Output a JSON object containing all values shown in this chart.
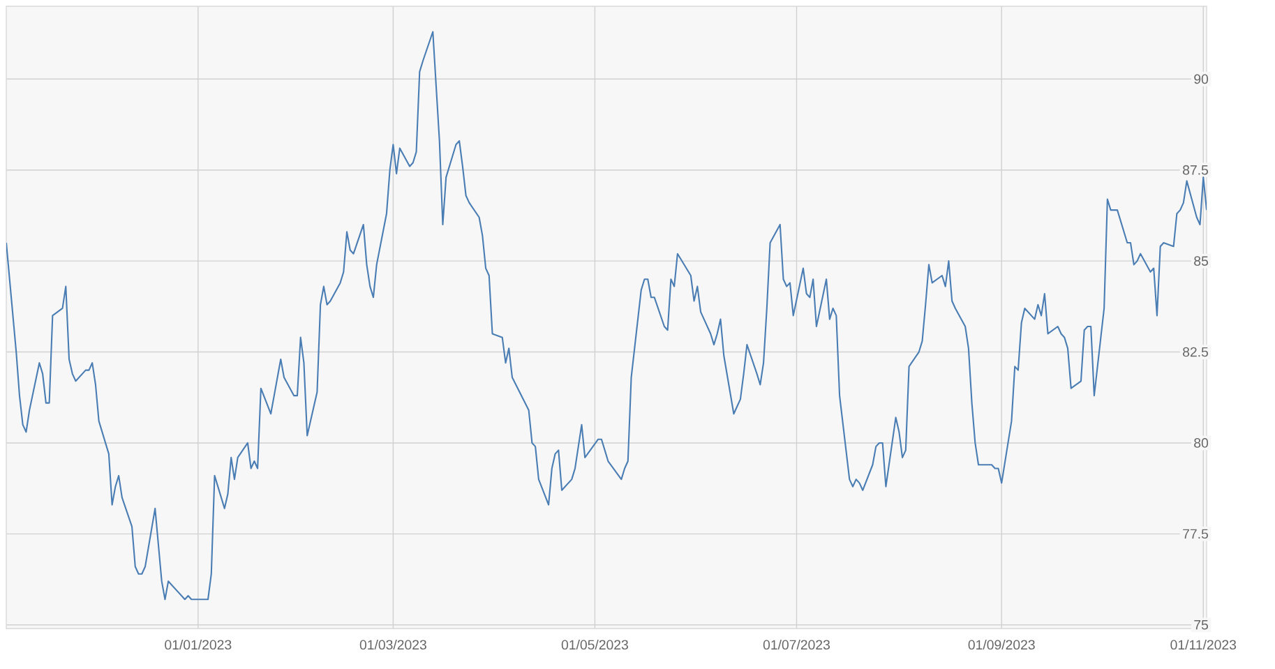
{
  "chart_data": {
    "type": "line",
    "color": "#4a7db3",
    "grid": true,
    "xlim": [
      "2022-11-04",
      "2023-11-02"
    ],
    "ylim": [
      74.9,
      92
    ],
    "yticks": [
      75,
      77.5,
      80,
      82.5,
      85,
      87.5,
      90
    ],
    "xticks": [
      {
        "value": "2023-01-01",
        "label": "01/01/2023"
      },
      {
        "value": "2023-03-01",
        "label": "01/03/2023"
      },
      {
        "value": "2023-05-01",
        "label": "01/05/2023"
      },
      {
        "value": "2023-07-01",
        "label": "01/07/2023"
      },
      {
        "value": "2023-09-01",
        "label": "01/09/2023"
      },
      {
        "value": "2023-11-01",
        "label": "01/11/2023"
      }
    ],
    "x": [
      "2022-11-04",
      "2022-11-07",
      "2022-11-08",
      "2022-11-09",
      "2022-11-10",
      "2022-11-11",
      "2022-11-14",
      "2022-11-15",
      "2022-11-16",
      "2022-11-17",
      "2022-11-18",
      "2022-11-21",
      "2022-11-22",
      "2022-11-23",
      "2022-11-24",
      "2022-11-25",
      "2022-11-28",
      "2022-11-29",
      "2022-11-30",
      "2022-12-01",
      "2022-12-02",
      "2022-12-05",
      "2022-12-06",
      "2022-12-07",
      "2022-12-08",
      "2022-12-09",
      "2022-12-12",
      "2022-12-13",
      "2022-12-14",
      "2022-12-15",
      "2022-12-16",
      "2022-12-19",
      "2022-12-20",
      "2022-12-21",
      "2022-12-22",
      "2022-12-23",
      "2022-12-28",
      "2022-12-29",
      "2022-12-30",
      "2023-01-03",
      "2023-01-04",
      "2023-01-05",
      "2023-01-06",
      "2023-01-09",
      "2023-01-10",
      "2023-01-11",
      "2023-01-12",
      "2023-01-13",
      "2023-01-16",
      "2023-01-17",
      "2023-01-18",
      "2023-01-19",
      "2023-01-20",
      "2023-01-23",
      "2023-01-24",
      "2023-01-25",
      "2023-01-26",
      "2023-01-27",
      "2023-01-30",
      "2023-01-31",
      "2023-02-01",
      "2023-02-02",
      "2023-02-03",
      "2023-02-06",
      "2023-02-07",
      "2023-02-08",
      "2023-02-09",
      "2023-02-10",
      "2023-02-13",
      "2023-02-14",
      "2023-02-15",
      "2023-02-16",
      "2023-02-17",
      "2023-02-20",
      "2023-02-21",
      "2023-02-22",
      "2023-02-23",
      "2023-02-24",
      "2023-02-27",
      "2023-02-28",
      "2023-03-01",
      "2023-03-02",
      "2023-03-03",
      "2023-03-06",
      "2023-03-07",
      "2023-03-08",
      "2023-03-09",
      "2023-03-10",
      "2023-03-13",
      "2023-03-14",
      "2023-03-15",
      "2023-03-16",
      "2023-03-17",
      "2023-03-20",
      "2023-03-21",
      "2023-03-22",
      "2023-03-23",
      "2023-03-24",
      "2023-03-27",
      "2023-03-28",
      "2023-03-29",
      "2023-03-30",
      "2023-03-31",
      "2023-04-03",
      "2023-04-04",
      "2023-04-05",
      "2023-04-06",
      "2023-04-11",
      "2023-04-12",
      "2023-04-13",
      "2023-04-14",
      "2023-04-17",
      "2023-04-18",
      "2023-04-19",
      "2023-04-20",
      "2023-04-21",
      "2023-04-24",
      "2023-04-25",
      "2023-04-26",
      "2023-04-27",
      "2023-04-28",
      "2023-05-02",
      "2023-05-03",
      "2023-05-04",
      "2023-05-05",
      "2023-05-09",
      "2023-05-10",
      "2023-05-11",
      "2023-05-12",
      "2023-05-15",
      "2023-05-16",
      "2023-05-17",
      "2023-05-18",
      "2023-05-19",
      "2023-05-22",
      "2023-05-23",
      "2023-05-24",
      "2023-05-25",
      "2023-05-26",
      "2023-05-30",
      "2023-05-31",
      "2023-06-01",
      "2023-06-02",
      "2023-06-05",
      "2023-06-06",
      "2023-06-07",
      "2023-06-08",
      "2023-06-09",
      "2023-06-12",
      "2023-06-13",
      "2023-06-14",
      "2023-06-15",
      "2023-06-16",
      "2023-06-19",
      "2023-06-20",
      "2023-06-21",
      "2023-06-22",
      "2023-06-23",
      "2023-06-26",
      "2023-06-27",
      "2023-06-28",
      "2023-06-29",
      "2023-06-30",
      "2023-07-03",
      "2023-07-04",
      "2023-07-05",
      "2023-07-06",
      "2023-07-07",
      "2023-07-10",
      "2023-07-11",
      "2023-07-12",
      "2023-07-13",
      "2023-07-14",
      "2023-07-17",
      "2023-07-18",
      "2023-07-19",
      "2023-07-20",
      "2023-07-21",
      "2023-07-24",
      "2023-07-25",
      "2023-07-26",
      "2023-07-27",
      "2023-07-28",
      "2023-07-31",
      "2023-08-01",
      "2023-08-02",
      "2023-08-03",
      "2023-08-04",
      "2023-08-07",
      "2023-08-08",
      "2023-08-09",
      "2023-08-10",
      "2023-08-11",
      "2023-08-14",
      "2023-08-15",
      "2023-08-16",
      "2023-08-17",
      "2023-08-18",
      "2023-08-21",
      "2023-08-22",
      "2023-08-23",
      "2023-08-24",
      "2023-08-25",
      "2023-08-29",
      "2023-08-30",
      "2023-08-31",
      "2023-09-01",
      "2023-09-04",
      "2023-09-05",
      "2023-09-06",
      "2023-09-07",
      "2023-09-08",
      "2023-09-11",
      "2023-09-12",
      "2023-09-13",
      "2023-09-14",
      "2023-09-15",
      "2023-09-18",
      "2023-09-19",
      "2023-09-20",
      "2023-09-21",
      "2023-09-22",
      "2023-09-25",
      "2023-09-26",
      "2023-09-27",
      "2023-09-28",
      "2023-09-29",
      "2023-10-02",
      "2023-10-03",
      "2023-10-04",
      "2023-10-05",
      "2023-10-06",
      "2023-10-09",
      "2023-10-10",
      "2023-10-11",
      "2023-10-12",
      "2023-10-13",
      "2023-10-16",
      "2023-10-17",
      "2023-10-18",
      "2023-10-19",
      "2023-10-20",
      "2023-10-23",
      "2023-10-24",
      "2023-10-25",
      "2023-10-26",
      "2023-10-27",
      "2023-10-30",
      "2023-10-31",
      "2023-11-01",
      "2023-11-02"
    ],
    "values": [
      85.5,
      82.5,
      81.3,
      80.5,
      80.3,
      80.9,
      82.2,
      81.9,
      81.1,
      81.1,
      83.5,
      83.7,
      84.3,
      82.3,
      81.9,
      81.7,
      82.0,
      82.0,
      82.2,
      81.6,
      80.6,
      79.7,
      78.3,
      78.8,
      79.1,
      78.5,
      77.7,
      76.6,
      76.4,
      76.4,
      76.6,
      78.2,
      77.2,
      76.2,
      75.7,
      76.2,
      75.7,
      75.8,
      75.7,
      75.7,
      75.7,
      76.4,
      79.1,
      78.2,
      78.6,
      79.6,
      79.0,
      79.6,
      80.0,
      79.3,
      79.5,
      79.3,
      81.5,
      80.8,
      81.3,
      81.8,
      82.3,
      81.8,
      81.3,
      81.3,
      82.9,
      82.2,
      80.2,
      81.4,
      83.8,
      84.3,
      83.8,
      83.9,
      84.4,
      84.7,
      85.8,
      85.3,
      85.2,
      86.0,
      84.9,
      84.3,
      84.0,
      84.9,
      86.3,
      87.5,
      88.2,
      87.4,
      88.1,
      87.6,
      87.7,
      88.0,
      90.2,
      90.5,
      91.3,
      89.8,
      88.3,
      86.0,
      87.3,
      88.2,
      88.3,
      87.6,
      86.8,
      86.6,
      86.2,
      85.7,
      84.8,
      84.6,
      83.0,
      82.9,
      82.2,
      82.6,
      81.8,
      80.9,
      80.0,
      79.9,
      79.0,
      78.3,
      79.3,
      79.7,
      79.8,
      78.7,
      79.0,
      79.3,
      79.9,
      80.5,
      79.6,
      80.1,
      80.1,
      79.8,
      79.5,
      79.0,
      79.3,
      79.5,
      81.8,
      84.2,
      84.5,
      84.5,
      84.0,
      84.0,
      83.2,
      83.1,
      84.5,
      84.3,
      85.2,
      84.6,
      83.9,
      84.3,
      83.6,
      83.0,
      82.7,
      83.0,
      83.4,
      82.4,
      80.8,
      81.0,
      81.2,
      81.9,
      82.7,
      81.9,
      81.6,
      82.2,
      83.7,
      85.5,
      86.0,
      84.5,
      84.3,
      84.4,
      83.5,
      84.8,
      84.1,
      84.0,
      84.5,
      83.2,
      84.5,
      83.4,
      83.7,
      83.5,
      81.3,
      79.0,
      78.8,
      79.0,
      78.9,
      78.7,
      79.4,
      79.9,
      80.0,
      80.0,
      78.8,
      80.7,
      80.3,
      79.6,
      79.8,
      82.1,
      82.5,
      82.8,
      83.8,
      84.9,
      84.4,
      84.6,
      84.3,
      85.0,
      83.9,
      83.7,
      83.2,
      82.6,
      81.1,
      80.0,
      79.4,
      79.4,
      79.3,
      79.3,
      78.9,
      80.6,
      82.1,
      82.0,
      83.3,
      83.7,
      83.4,
      83.8,
      83.5,
      84.1,
      83.0,
      83.2,
      83.0,
      82.9,
      82.6,
      81.5,
      81.7,
      83.1,
      83.2,
      83.2,
      81.3,
      83.7,
      86.7,
      86.4,
      86.4,
      86.4,
      85.5,
      85.5,
      84.9,
      85.0,
      85.2,
      84.7,
      84.8,
      83.5,
      85.4,
      85.5,
      85.4,
      86.3,
      86.4,
      86.6,
      87.2,
      86.2,
      86.0,
      87.3,
      86.4
    ]
  }
}
